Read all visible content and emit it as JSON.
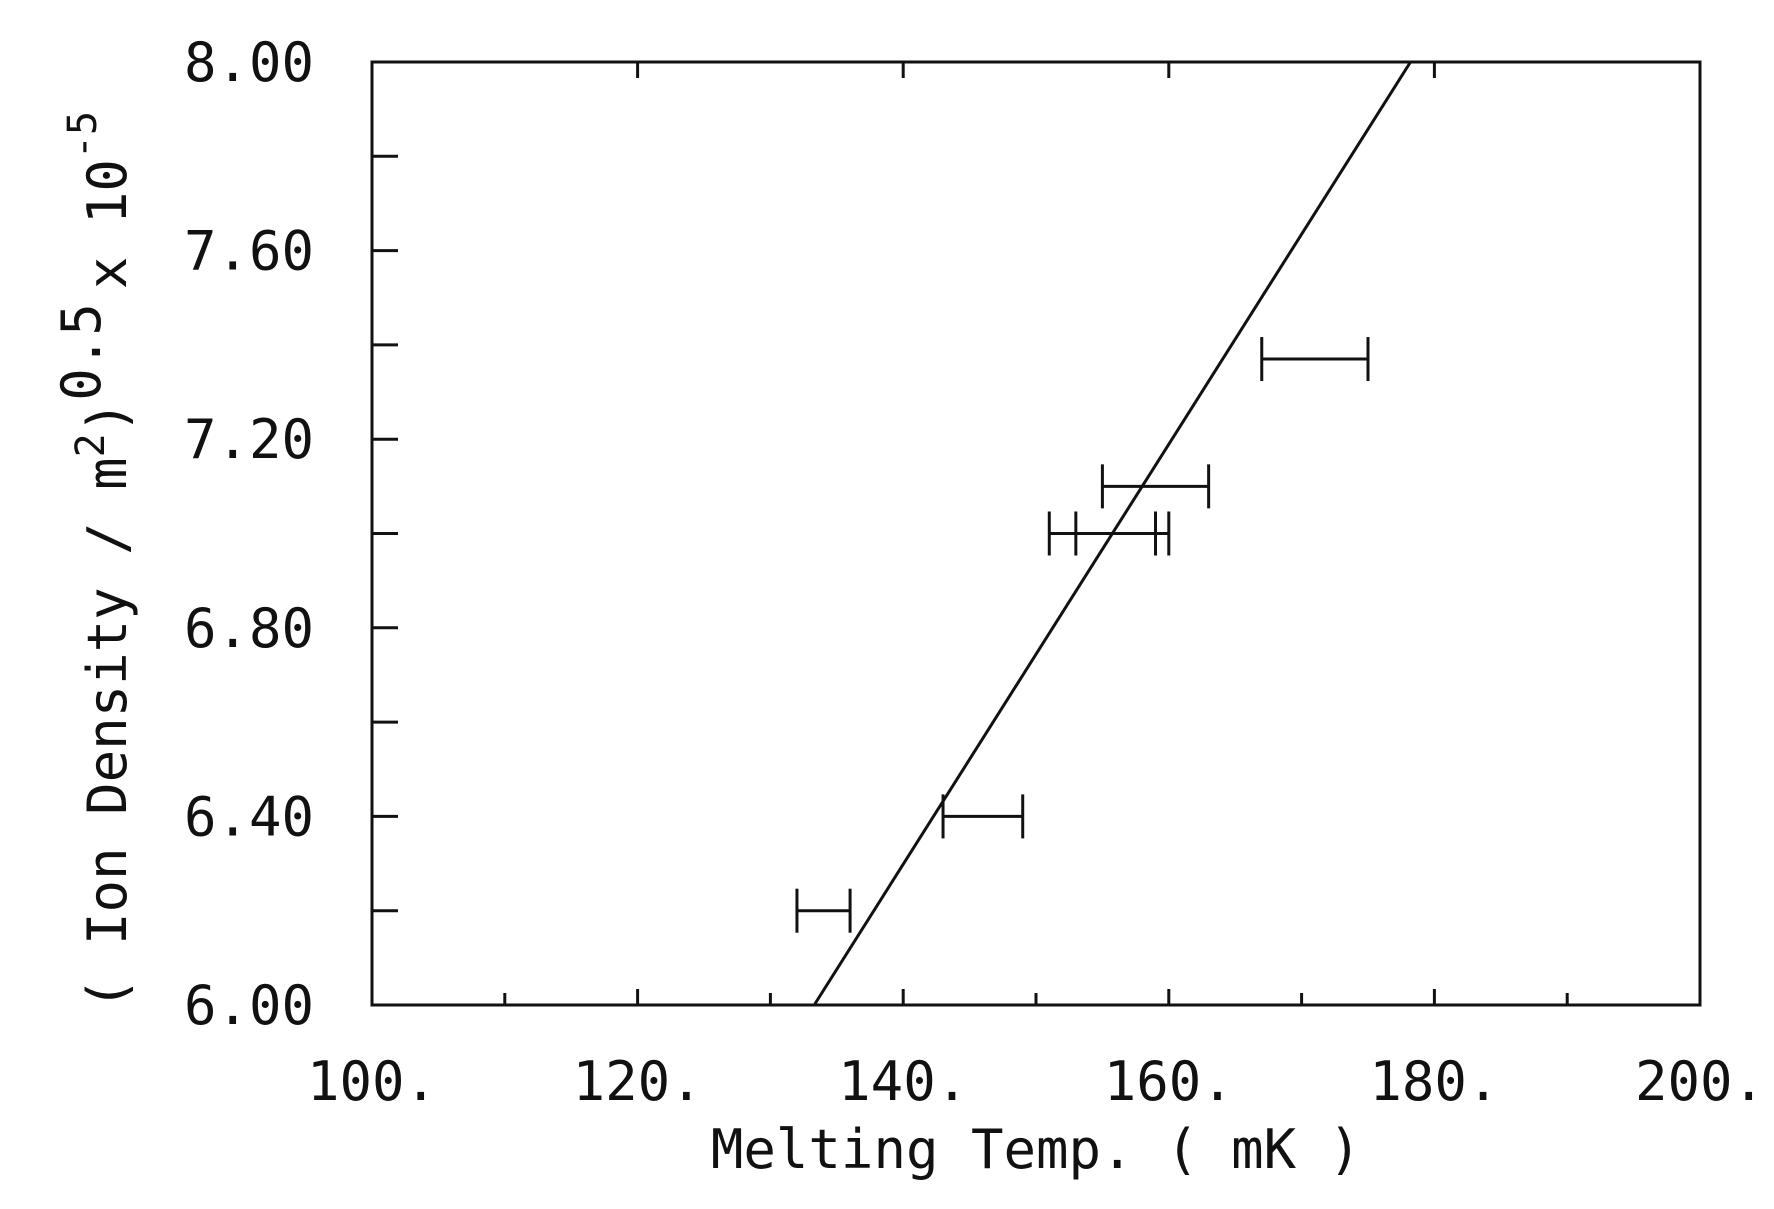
{
  "chart_data": {
    "type": "scatter",
    "xlabel": "Melting Temp. ( mK )",
    "ylabel": {
      "main": "( Ion Density / m",
      "sq": "2",
      "close": ")",
      "pow": "0.5",
      "times": "x 10",
      "exp": "-5"
    },
    "xlim": [
      100,
      200
    ],
    "ylim": [
      6.0,
      8.0
    ],
    "x_ticks": [
      100,
      120,
      140,
      160,
      180,
      200
    ],
    "x_tick_labels": [
      "100.",
      "120.",
      "140.",
      "160.",
      "180.",
      "200."
    ],
    "x_minor_ticks": [
      110,
      130,
      150,
      170,
      190
    ],
    "y_ticks": [
      6.0,
      6.4,
      6.8,
      7.2,
      7.6,
      8.0
    ],
    "y_tick_labels": [
      "6.00",
      "6.40",
      "6.80",
      "7.20",
      "7.60",
      "8.00"
    ],
    "y_minor_ticks": [
      6.2,
      6.6,
      7.0,
      7.4,
      7.8
    ],
    "grid": false,
    "points": [
      {
        "y": 6.2,
        "xmin": 132.0,
        "xmax": 136.0
      },
      {
        "y": 6.4,
        "xmin": 143.0,
        "xmax": 149.0
      },
      {
        "y": 7.0,
        "xmin": 151.0,
        "xmax": 160.0
      },
      {
        "y": 7.0,
        "xmin": 153.0,
        "xmax": 159.0
      },
      {
        "y": 7.1,
        "xmin": 155.0,
        "xmax": 163.0
      },
      {
        "y": 7.37,
        "xmin": 167.0,
        "xmax": 175.0
      }
    ],
    "fit_line": {
      "x": [
        133.3,
        178.2
      ],
      "y": [
        6.0,
        8.0
      ]
    }
  }
}
